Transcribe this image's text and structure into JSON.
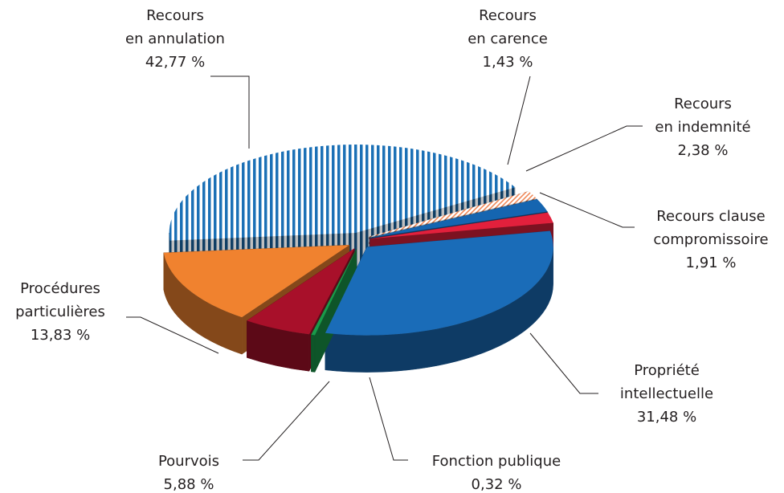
{
  "chart_data": {
    "type": "pie3d",
    "categories": [
      [
        "Recours",
        "en annulation"
      ],
      [
        "Recours",
        "en carence"
      ],
      [
        "Recours",
        "en indemnité"
      ],
      [
        "Recours clause",
        "compromissoire"
      ],
      [
        "Propriété",
        "intellectuelle"
      ],
      [
        "Fonction publique"
      ],
      [
        "Pourvois"
      ],
      [
        "Procédures",
        "particulières"
      ]
    ],
    "values": [
      42.77,
      1.43,
      2.38,
      1.91,
      31.48,
      0.32,
      5.88,
      13.83
    ],
    "value_labels": [
      "42,77 %",
      "1,43 %",
      "2,38 %",
      "1,91 %",
      "31,48 %",
      "0,32 %",
      "5,88 %",
      "13,83 %"
    ],
    "colors": [
      "#1b70b6",
      "#f08a5a",
      "#1565b0",
      "#e2203c",
      "#1a6cb8",
      "#1a9a4a",
      "#a8102a",
      "#f0822f"
    ],
    "patterns": [
      "vertical-stripes",
      "diagonal-hatch",
      "none",
      "none",
      "none",
      "none",
      "none",
      "none"
    ]
  }
}
